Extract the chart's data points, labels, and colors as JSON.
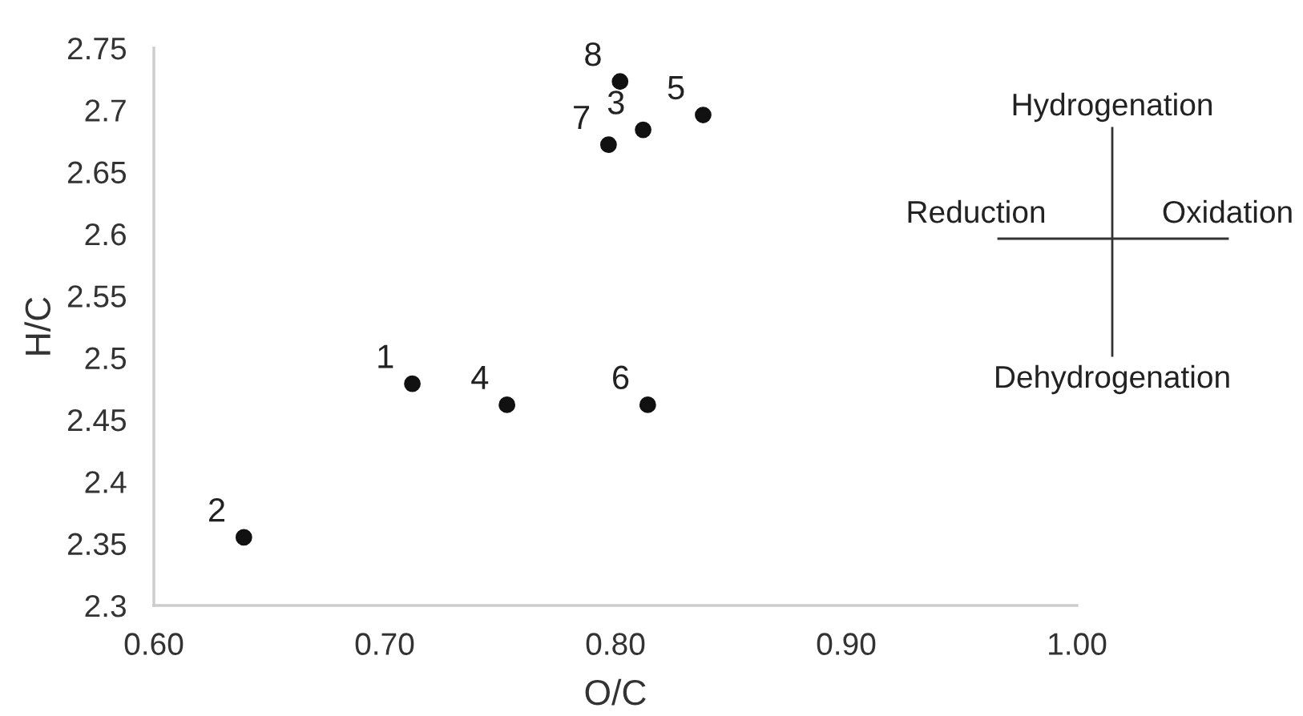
{
  "chart_data": {
    "type": "scatter",
    "xlabel": "O/C",
    "ylabel": "H/C",
    "x": [
      0.712,
      0.639,
      0.812,
      0.753,
      0.838,
      0.814,
      0.797,
      0.802
    ],
    "series": [
      {
        "color": "#111111",
        "values": [
          2.479,
          2.355,
          2.684,
          2.462,
          2.696,
          2.462,
          2.672,
          2.723
        ]
      }
    ],
    "marker": "circle",
    "grid": false,
    "legend": false,
    "xlim": [
      0.6,
      1.0
    ],
    "xticks": [
      {
        "value": 0.6,
        "label": "0.60"
      },
      {
        "value": 0.7,
        "label": "0.70"
      },
      {
        "value": 0.8,
        "label": "0.80"
      },
      {
        "value": 0.9,
        "label": "0.90"
      },
      {
        "value": 1.0,
        "label": "1.00"
      }
    ],
    "ylim": [
      2.3,
      2.75
    ],
    "yticks": [
      2.3,
      2.35,
      2.4,
      2.45,
      2.5,
      2.55,
      2.6,
      2.65,
      2.7,
      2.75
    ],
    "annotations": [
      {
        "text": "1",
        "x": 0.712,
        "y": 2.479
      },
      {
        "text": "2",
        "x": 0.639,
        "y": 2.355
      },
      {
        "text": "3",
        "x": 0.812,
        "y": 2.684
      },
      {
        "text": "4",
        "x": 0.753,
        "y": 2.462
      },
      {
        "text": "5",
        "x": 0.838,
        "y": 2.696
      },
      {
        "text": "6",
        "x": 0.814,
        "y": 2.462
      },
      {
        "text": "7",
        "x": 0.797,
        "y": 2.672
      },
      {
        "text": "8",
        "x": 0.802,
        "y": 2.723
      },
      "Hydrogenation",
      "Reduction",
      "Oxidation",
      "Dehydrogenation"
    ]
  }
}
